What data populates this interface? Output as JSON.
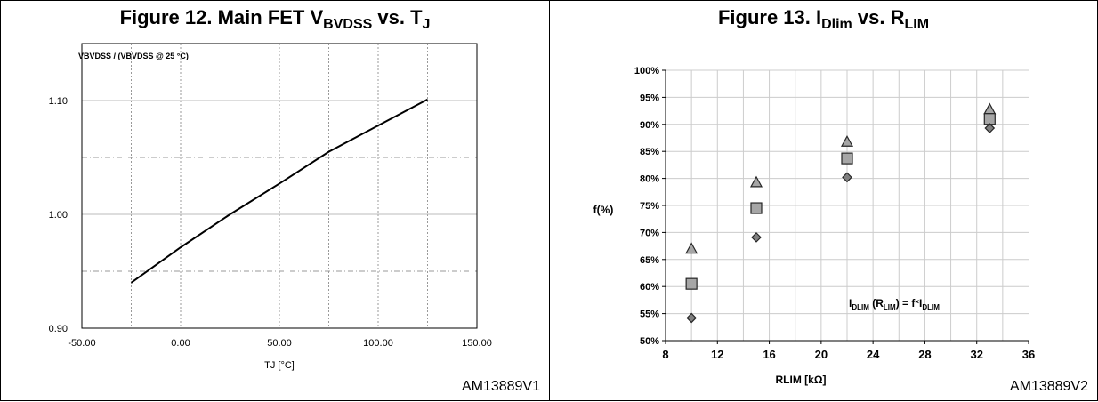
{
  "figure12": {
    "title_prefix": "Figure 12. Main FET V",
    "title_sub1": "BVDSS",
    "title_mid": " vs. T",
    "title_sub2": "J",
    "code": "AM13889V1"
  },
  "figure13": {
    "title_prefix": "Figure 13. I",
    "title_sub1": "Dlim",
    "title_mid": " vs. R",
    "title_sub2": "LIM",
    "code": "AM13889V2",
    "annotation": {
      "p1": "I",
      "s1": "DLIM",
      "p2": " (R",
      "s2": "LIM",
      "p3": ") = f",
      "p4": "×",
      "p5": "I",
      "s3": "DLIM"
    }
  },
  "chart_data": [
    {
      "type": "line",
      "title": "Figure 12. Main FET VBVDSS vs. TJ",
      "ylabel": "VBVDSS / (VBVDSS @ 25 °C)",
      "xlabel": "TJ [°C]",
      "xlim": [
        -50,
        150
      ],
      "ylim": [
        0.9,
        1.15
      ],
      "xticks": [
        "-50.00",
        "0.00",
        "50.00",
        "100.00",
        "150.00"
      ],
      "yticks": [
        "0.90",
        "1.00",
        "1.10"
      ],
      "grid": true,
      "series": [
        {
          "x": [
            -25,
            0,
            25,
            50,
            75,
            100,
            125
          ],
          "y": [
            0.94,
            0.971,
            1.0,
            1.027,
            1.055,
            1.078,
            1.101
          ]
        }
      ]
    },
    {
      "type": "scatter",
      "title": "Figure 13. IDlim vs. RLIM",
      "ylabel": "f(%)",
      "xlabel": "RLIM [kΩ]",
      "xlim": [
        8,
        36
      ],
      "ylim": [
        50,
        100
      ],
      "xticks": [
        "8",
        "12",
        "16",
        "20",
        "24",
        "28",
        "32",
        "36"
      ],
      "yticks": [
        "50%",
        "55%",
        "60%",
        "65%",
        "70%",
        "75%",
        "80%",
        "85%",
        "90%",
        "95%",
        "100%"
      ],
      "grid": true,
      "series": [
        {
          "marker": "triangle",
          "x": [
            10,
            15,
            22,
            33
          ],
          "y": [
            67.0,
            79.3,
            86.8,
            92.8
          ]
        },
        {
          "marker": "square",
          "x": [
            10,
            15,
            22,
            33
          ],
          "y": [
            60.5,
            74.5,
            83.7,
            91.0
          ]
        },
        {
          "marker": "diamond",
          "x": [
            10,
            15,
            22,
            33
          ],
          "y": [
            54.2,
            69.1,
            80.2,
            89.3
          ]
        }
      ]
    }
  ]
}
